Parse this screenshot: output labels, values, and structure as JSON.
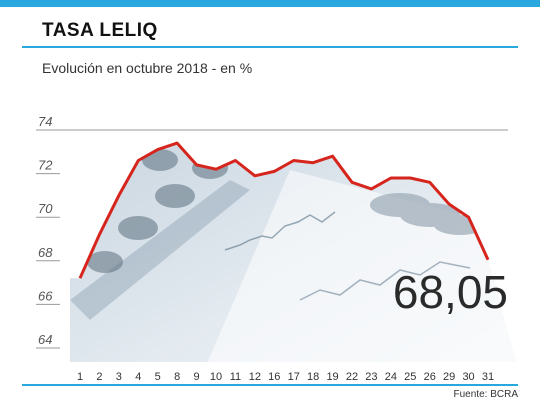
{
  "header": {
    "title": "TASA LELIQ",
    "subtitle": "Evolución en octubre 2018 - en %"
  },
  "source": "Fuente: BCRA",
  "colors": {
    "accent": "#29a8e0",
    "line": "#d6251c"
  },
  "chart_data": {
    "type": "line",
    "title": "TASA LELIQ",
    "subtitle": "Evolución en octubre 2018 - en %",
    "xlabel": "",
    "ylabel": "",
    "categories": [
      "1",
      "2",
      "3",
      "4",
      "5",
      "8",
      "9",
      "10",
      "11",
      "12",
      "16",
      "17",
      "18",
      "19",
      "22",
      "23",
      "24",
      "25",
      "26",
      "29",
      "30",
      "31"
    ],
    "ylim": [
      64,
      74
    ],
    "yticks": [
      64,
      66,
      68,
      70,
      72,
      74
    ],
    "series": [
      {
        "name": "",
        "values": [
          67.2,
          69.2,
          71.0,
          72.6,
          73.1,
          73.4,
          72.4,
          72.2,
          72.6,
          71.9,
          72.1,
          72.6,
          72.5,
          72.8,
          71.6,
          71.3,
          71.8,
          71.8,
          71.6,
          70.6,
          70.0,
          68.05
        ]
      }
    ],
    "annotations": [
      {
        "text": "68,05"
      }
    ],
    "grid": false
  }
}
